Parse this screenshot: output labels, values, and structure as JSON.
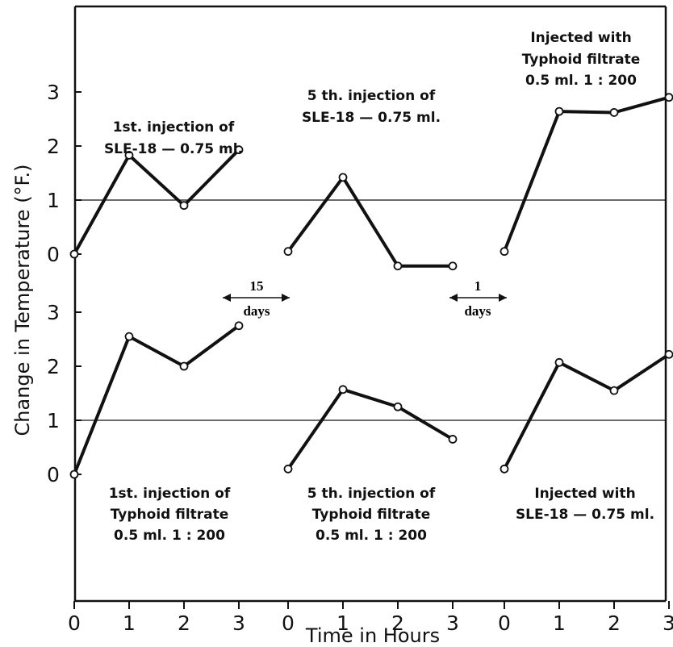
{
  "chart_data": {
    "type": "line",
    "xlabel": "Time in Hours",
    "ylabel": "Change in Temperature (°F.)",
    "x_tick_labels": [
      "0",
      "1",
      "2",
      "3",
      "0",
      "1",
      "2",
      "3",
      "0",
      "1",
      "2",
      "3"
    ],
    "y_tick_labels_top": [
      "0",
      "1",
      "2",
      "3"
    ],
    "y_tick_labels_bottom": [
      "0",
      "1",
      "2",
      "3"
    ],
    "ylim": [
      0,
      3
    ],
    "reference_line": 1,
    "intervals": [
      {
        "from_group": 0,
        "to_group": 1,
        "number": "15",
        "unit": "days"
      },
      {
        "from_group": 1,
        "to_group": 2,
        "number": "1",
        "unit": "days"
      }
    ],
    "panels": [
      {
        "row": "top",
        "group": 0,
        "annotation": [
          "1st. injection of",
          "SLE-18 — 0.75 ml."
        ],
        "x": [
          0,
          1,
          2,
          3
        ],
        "y": [
          0,
          1.83,
          0.9,
          1.93
        ]
      },
      {
        "row": "top",
        "group": 1,
        "annotation": [
          "5 th. injection of",
          "SLE-18 — 0.75 ml."
        ],
        "x": [
          0,
          1,
          2,
          3
        ],
        "y": [
          0.05,
          1.42,
          -0.22,
          -0.22
        ]
      },
      {
        "row": "top",
        "group": 2,
        "annotation": [
          "Injected with",
          "Typhoid filtrate",
          "0.5 ml.  1 : 200"
        ],
        "x": [
          0,
          1,
          2,
          3
        ],
        "y": [
          0.05,
          2.64,
          2.62,
          2.9
        ]
      },
      {
        "row": "bottom",
        "group": 0,
        "annotation": [
          "1st. injection of",
          "Typhoid filtrate",
          "0.5 ml.  1 : 200"
        ],
        "x": [
          0,
          1,
          2,
          3
        ],
        "y": [
          0,
          2.55,
          2.0,
          2.75
        ]
      },
      {
        "row": "bottom",
        "group": 1,
        "annotation": [
          "5 th. injection of",
          "Typhoid filtrate",
          "0.5 ml.  1 : 200"
        ],
        "x": [
          0,
          1,
          2,
          3
        ],
        "y": [
          0.1,
          1.57,
          1.25,
          0.65
        ]
      },
      {
        "row": "bottom",
        "group": 2,
        "annotation": [
          "Injected with",
          "SLE-18 — 0.75 ml."
        ],
        "x": [
          0,
          1,
          2,
          3
        ],
        "y": [
          0.1,
          2.07,
          1.55,
          2.22
        ]
      }
    ]
  }
}
